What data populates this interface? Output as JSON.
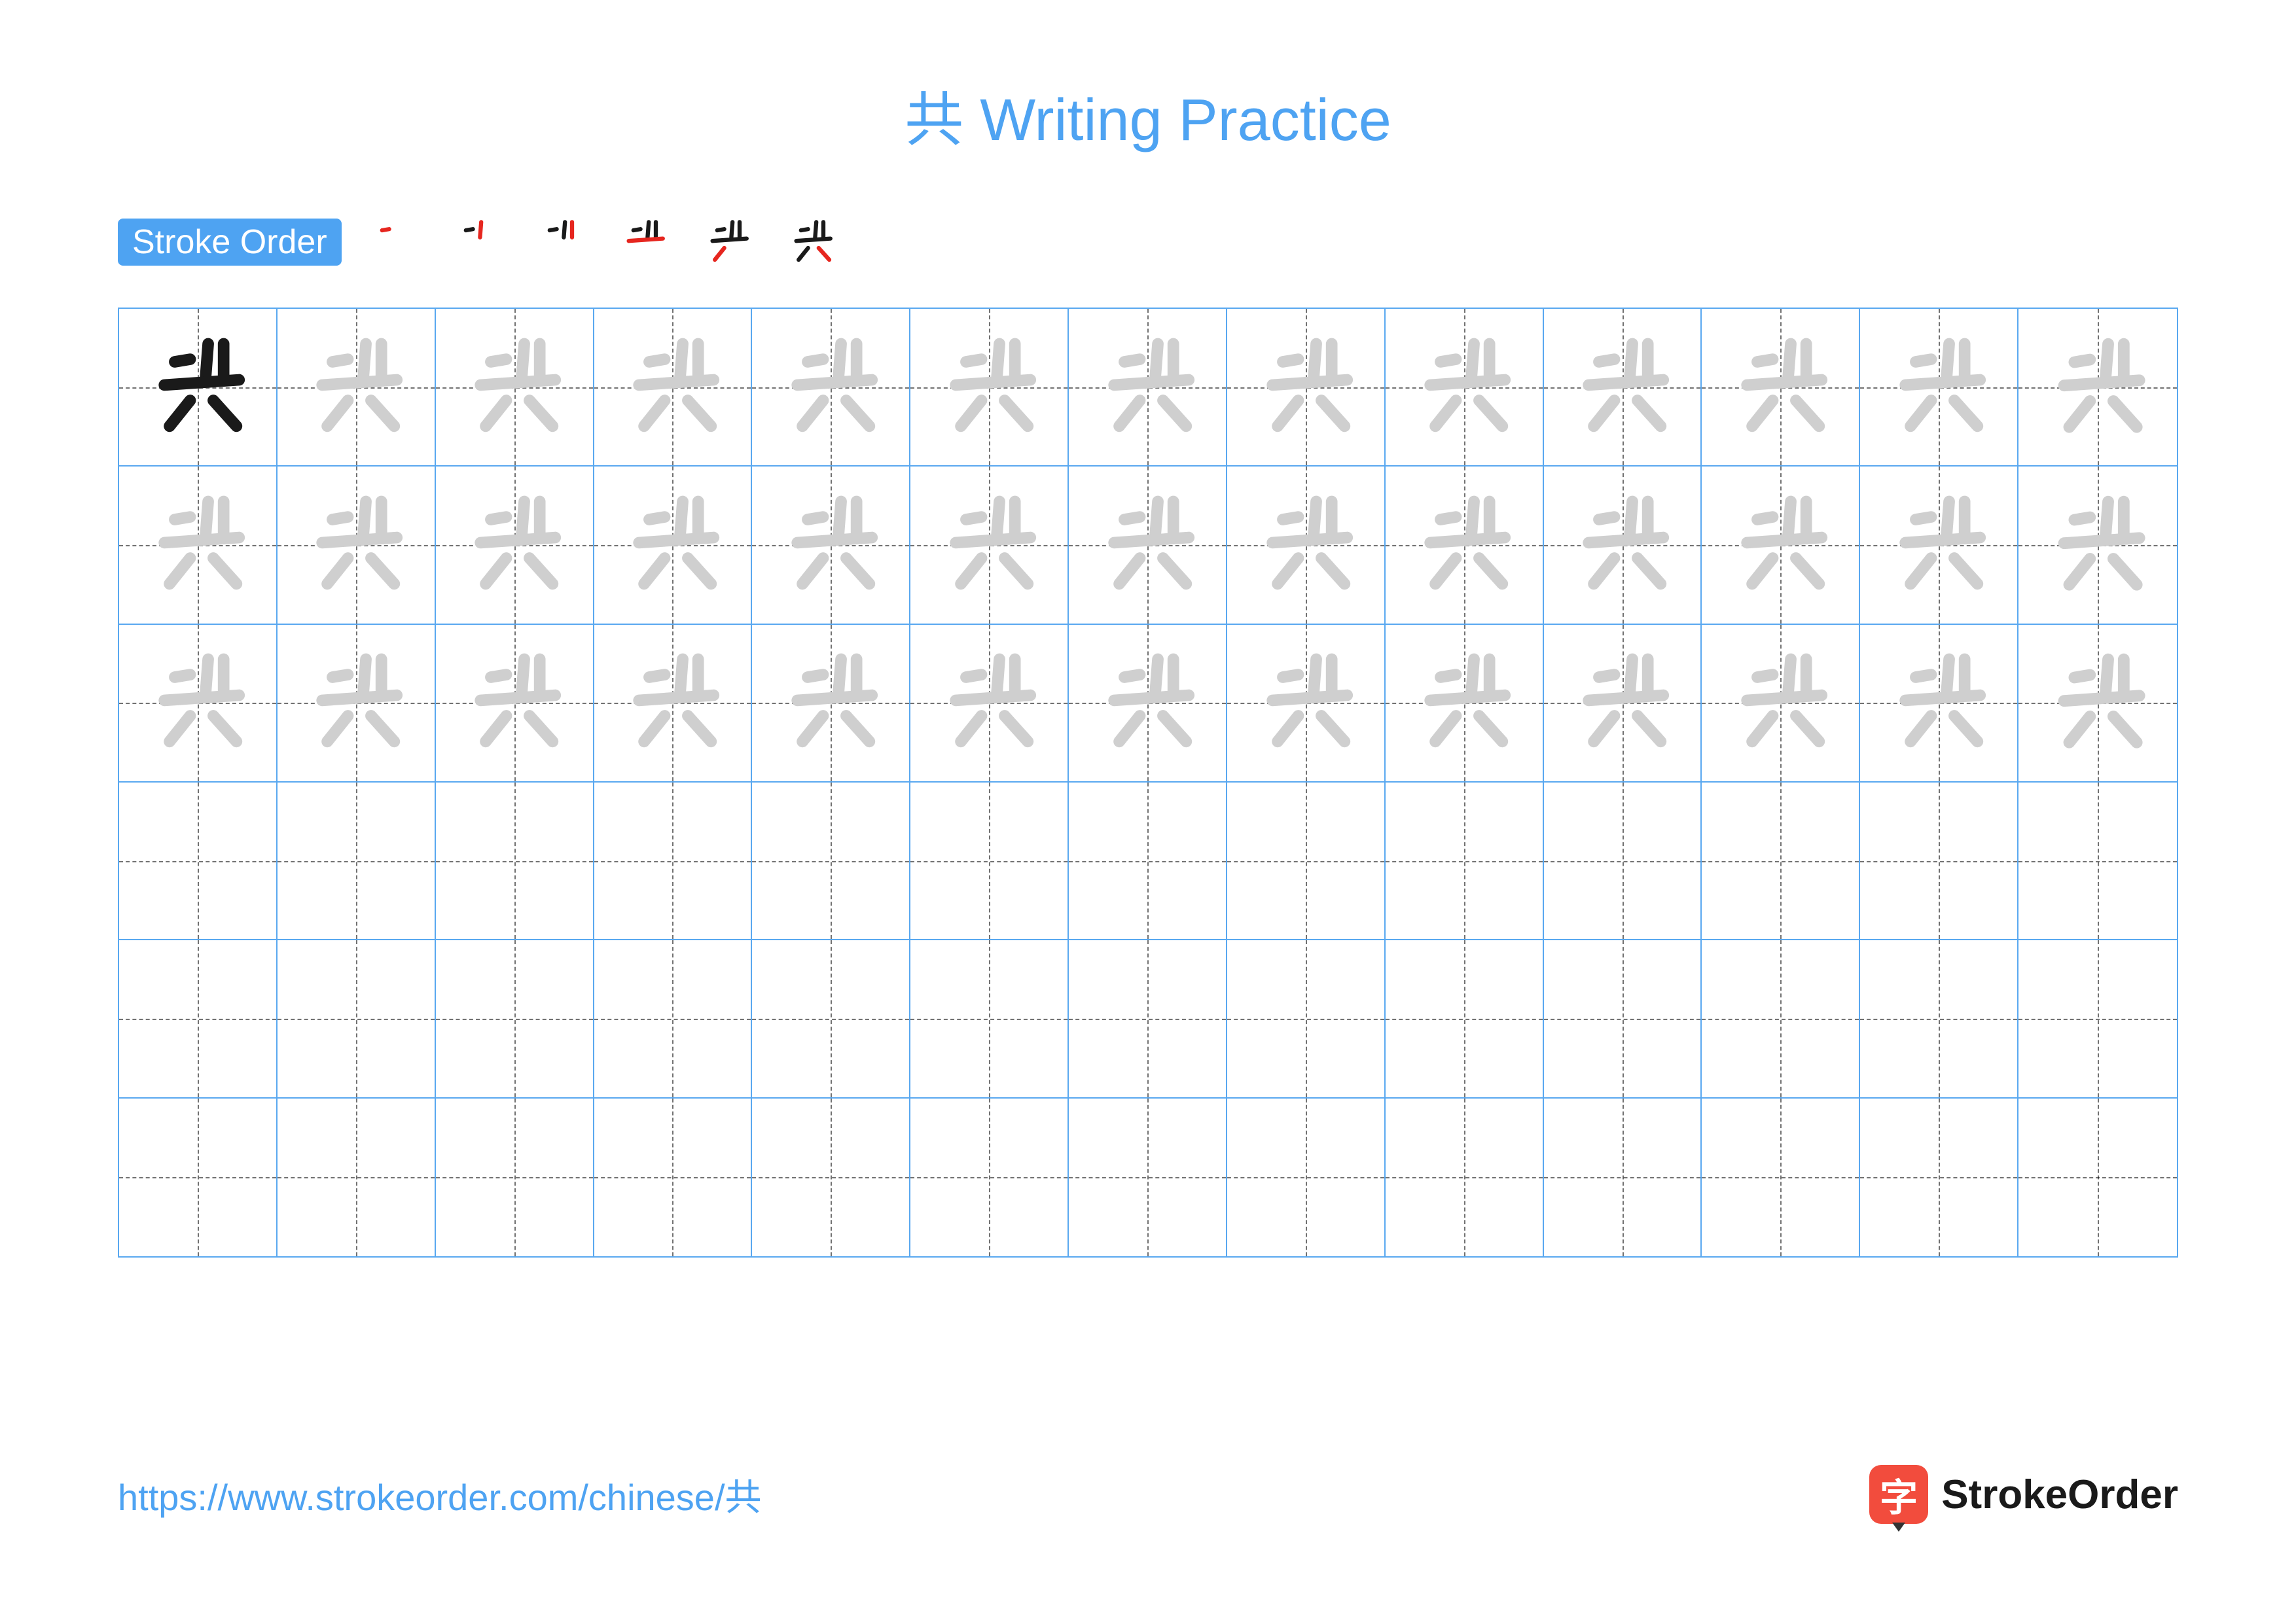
{
  "character": "共",
  "title": "共 Writing Practice",
  "badge_label": "Stroke Order",
  "url": "https://www.strokeorder.com/chinese/共",
  "logo_glyph": "字",
  "logo_text": "StrokeOrder",
  "colors": {
    "accent": "#4ea3f2",
    "title": "#4ea3f2",
    "badge_bg": "#4ea3f2",
    "grid_border": "#59a8f0",
    "char_solid": "#1a1a1a",
    "char_trace": "#cfcfcf",
    "stroke_highlight": "#e6261f",
    "stroke_done": "#1a1a1a",
    "url": "#4ea3f2",
    "logo_bg": "#f24c3d",
    "logo_text": "#1a1a1a"
  },
  "grid": {
    "cols": 13,
    "rows": 6,
    "trace_rows": 3,
    "solid_cells": 1
  },
  "strokes": [
    "M 32 30 L 44 28",
    "M 58 16 L 56 42",
    "M 70 16 L 70 42",
    "M 24 48 L 82 44",
    "M 44 60 L 28 80",
    "M 62 60 L 80 80"
  ],
  "stroke_order_steps": 6,
  "fontsize_title": 90,
  "fontsize_badge": 52,
  "fontsize_url": 56,
  "fontsize_logo": 62
}
